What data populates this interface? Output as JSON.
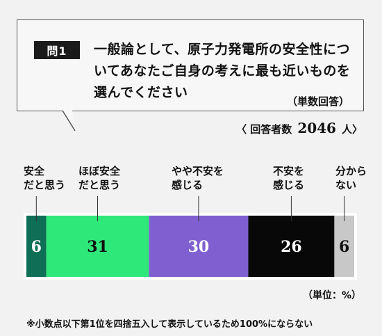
{
  "question": {
    "badge": "問1",
    "text": "一般論として、原子力発電所の安全性についてあなたご自身の考えに最も近いものを選んでください",
    "answer_type": "（単数回答）"
  },
  "respondents": {
    "label": "〈 回答者数",
    "count": "2046",
    "unit": "人〉"
  },
  "chart_data": {
    "type": "bar",
    "orientation": "horizontal-stacked",
    "categories": [
      "安全だと思う",
      "ほぼ安全だと思う",
      "やや不安を感じる",
      "不安を感じる",
      "分からない"
    ],
    "category_lines": [
      [
        "安全",
        "だと思う"
      ],
      [
        "ほぼ安全",
        "だと思う"
      ],
      [
        "やや不安を",
        "感じる"
      ],
      [
        "不安を",
        "感じる"
      ],
      [
        "分から",
        "ない"
      ]
    ],
    "values": [
      6,
      31,
      30,
      26,
      6
    ],
    "colors": [
      "#0e6e56",
      "#2ee87a",
      "#8060d0",
      "#080808",
      "#c8c8c8"
    ],
    "label_colors": [
      "#ffffff",
      "#111111",
      "#ffffff",
      "#ffffff",
      "#111111"
    ],
    "unit_label": "（単位：%）",
    "footnote": "※小数点以下第1位を四捨五入して表示しているため100%にならない"
  }
}
